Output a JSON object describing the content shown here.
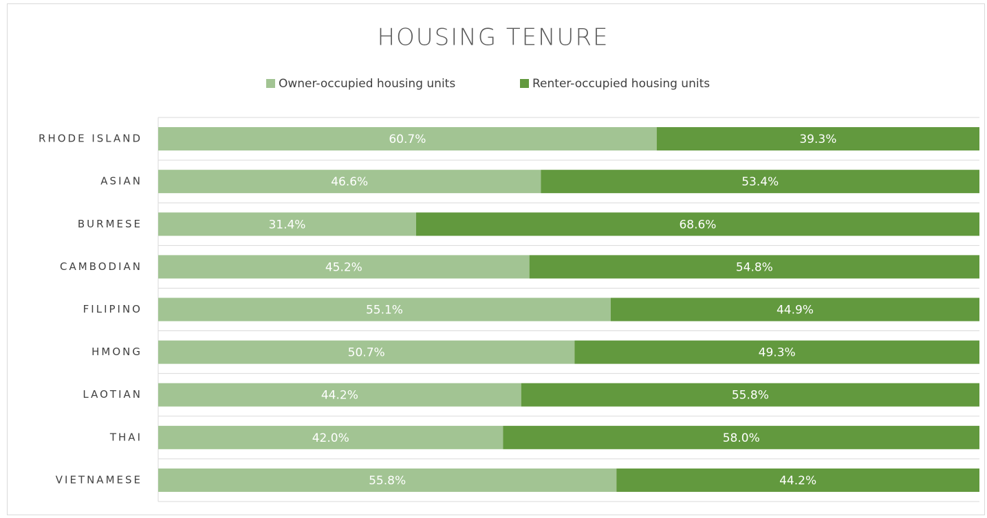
{
  "chart_data": {
    "type": "stacked_bar_horizontal",
    "title": "HOUSING TENURE",
    "categories": [
      "RHODE ISLAND",
      "ASIAN",
      "BURMESE",
      "CAMBODIAN",
      "FILIPINO",
      "HMONG",
      "LAOTIAN",
      "THAI",
      "VIETNAMESE"
    ],
    "series": [
      {
        "name": "Owner-occupied housing units",
        "color": "#a2c493",
        "values": [
          60.7,
          46.6,
          31.4,
          45.2,
          55.1,
          50.7,
          44.2,
          42.0,
          55.8
        ],
        "value_labels": [
          "60.7%",
          "46.6%",
          "31.4%",
          "45.2%",
          "55.1%",
          "50.7%",
          "44.2%",
          "42.0%",
          "55.8%"
        ]
      },
      {
        "name": "Renter-occupied housing units",
        "color": "#62993e",
        "values": [
          39.3,
          53.4,
          68.6,
          54.8,
          44.9,
          49.3,
          55.8,
          58.0,
          44.2
        ],
        "value_labels": [
          "39.3%",
          "53.4%",
          "68.6%",
          "54.8%",
          "44.9%",
          "49.3%",
          "55.8%",
          "58.0%",
          "44.2%"
        ]
      }
    ],
    "xlim": [
      0,
      100
    ],
    "grid": true,
    "legend": "top"
  }
}
